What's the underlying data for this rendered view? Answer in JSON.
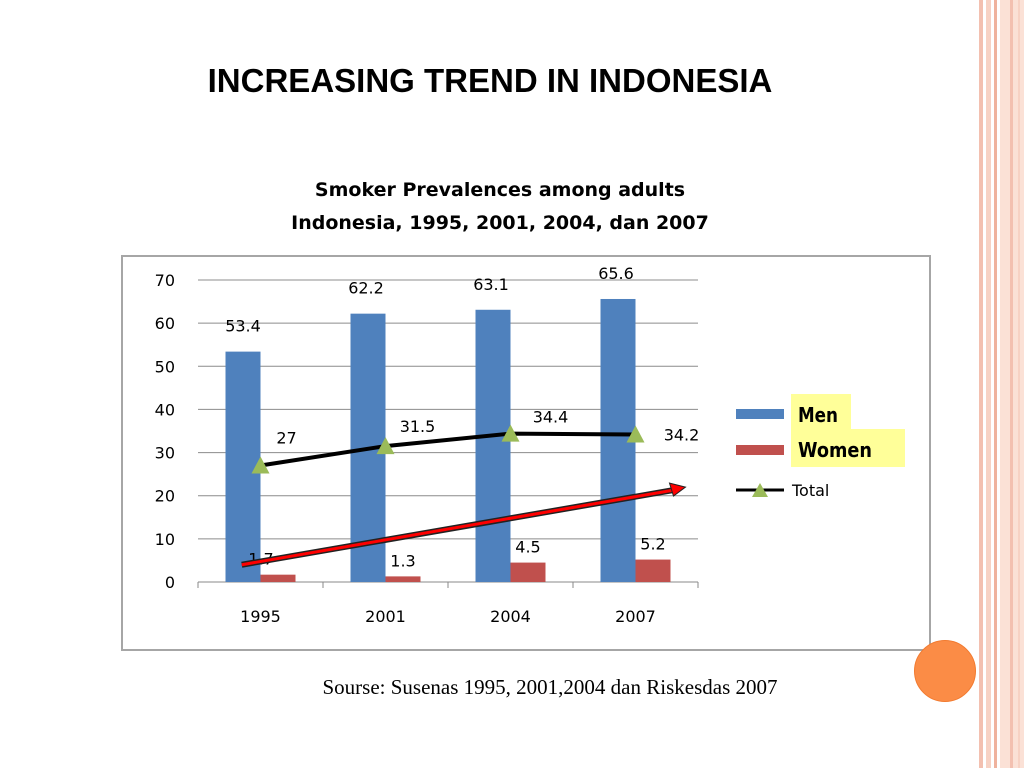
{
  "slide": {
    "title": "INCREASING TREND IN INDONESIA",
    "subtitle_line1": "Smoker Prevalences among adults",
    "subtitle_line2": "Indonesia, 1995, 2001, 2004, dan 2007",
    "source": "Sourse: Susenas 1995, 2001,2004 dan Riskesdas 2007"
  },
  "colors": {
    "men": "#4f81bd",
    "women": "#c0504d",
    "total_line": "#000000",
    "total_marker": "#9bbb59",
    "trend_arrow": "#ff0000",
    "legend_highlight": "#ffff99",
    "accent_circle": "#fb8c46"
  },
  "chart_data": {
    "type": "bar",
    "categories": [
      "1995",
      "2001",
      "2004",
      "2007"
    ],
    "ylim": [
      0,
      70
    ],
    "yticks": [
      0,
      10,
      20,
      30,
      40,
      50,
      60,
      70
    ],
    "grid": true,
    "legend_position": "right",
    "series": [
      {
        "name": "Men",
        "type": "bar",
        "values": [
          53.4,
          62.2,
          63.1,
          65.6
        ],
        "labels": [
          "53.4",
          "62.2",
          "63.1",
          "65.6"
        ]
      },
      {
        "name": "Women",
        "type": "bar",
        "values": [
          1.7,
          1.3,
          4.5,
          5.2
        ],
        "labels": [
          "1.7",
          "1.3",
          "4.5",
          "5.2"
        ]
      },
      {
        "name": "Total",
        "type": "line",
        "marker": "triangle",
        "values": [
          27,
          31.5,
          34.4,
          34.2
        ],
        "labels": [
          "27",
          "31.5",
          "34.4",
          "34.2"
        ]
      }
    ],
    "annotations": [
      {
        "type": "arrow",
        "description": "upward trend arrow",
        "from_value": 4,
        "to_value": 22
      }
    ]
  }
}
